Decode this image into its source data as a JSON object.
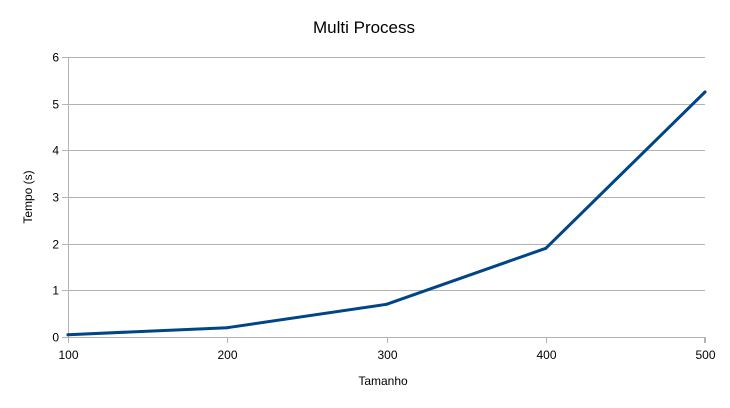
{
  "chart_data": {
    "type": "line",
    "title": "Multi Process",
    "xlabel": "Tamanho",
    "ylabel": "Tempo (s)",
    "x": [
      100,
      200,
      300,
      400,
      500
    ],
    "series": [
      {
        "values": [
          0.05,
          0.2,
          0.7,
          1.9,
          5.25
        ]
      }
    ],
    "xlim": [
      100,
      500
    ],
    "ylim": [
      0,
      6
    ],
    "xticks": [
      "100",
      "200",
      "300",
      "400",
      "500"
    ],
    "yticks": [
      "0",
      "1",
      "2",
      "3",
      "4",
      "5",
      "6"
    ],
    "grid": "horizontal",
    "legend": "none",
    "colors": {
      "line": "#004586",
      "grid": "#b3b3b3",
      "axis": "#b3b3b3"
    }
  }
}
